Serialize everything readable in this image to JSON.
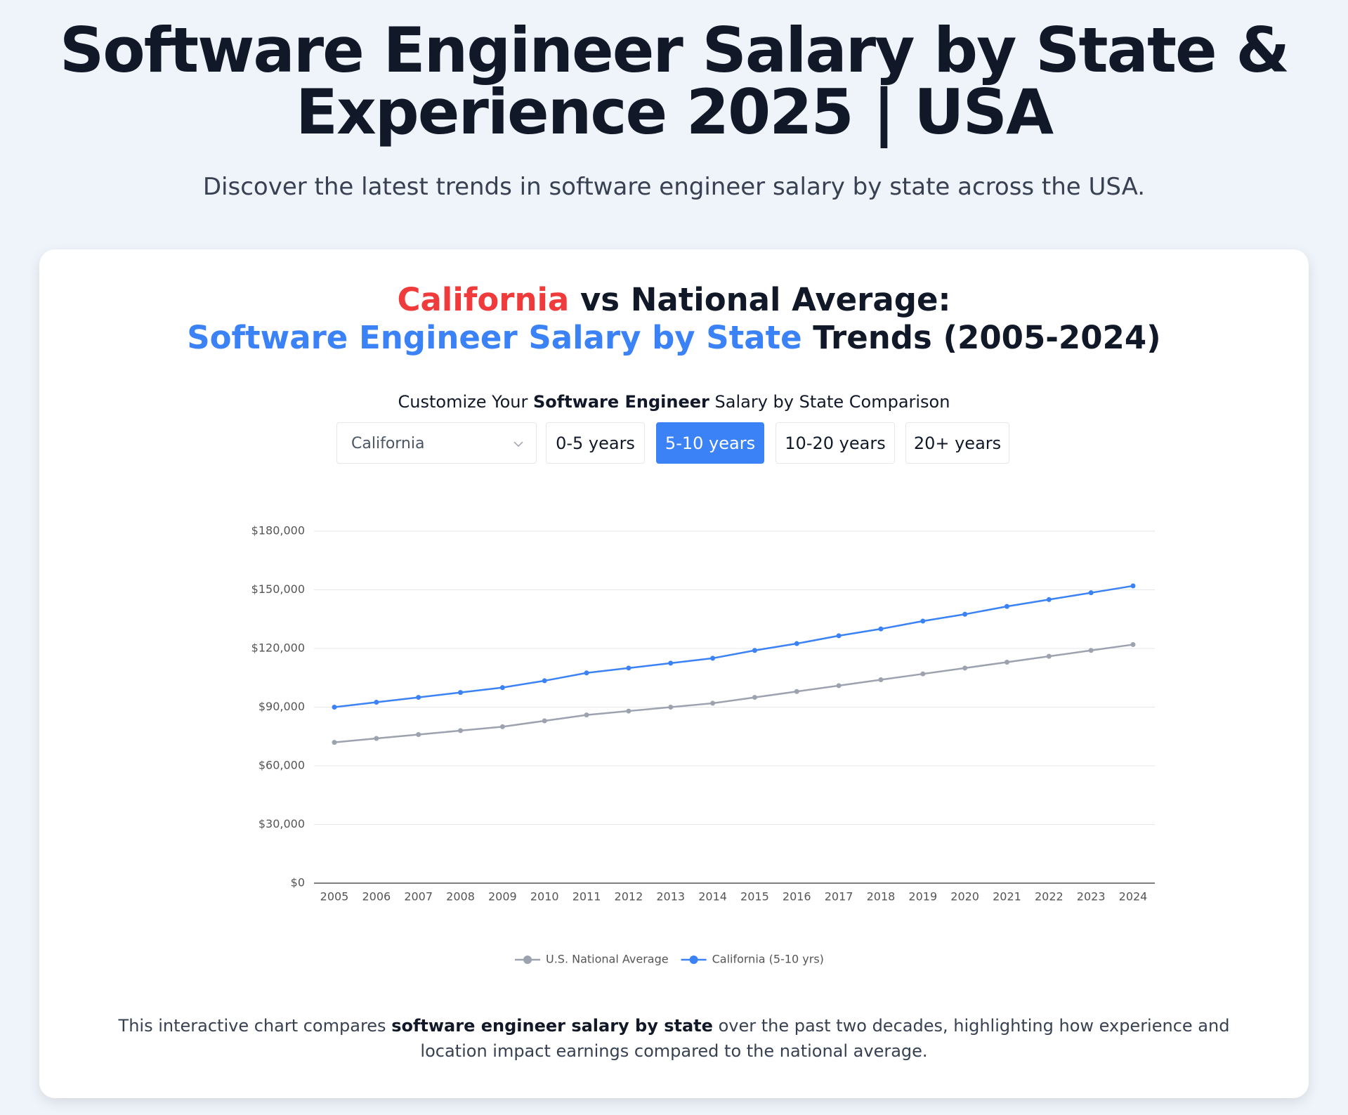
{
  "header": {
    "title": "Software Engineer Salary by State & Experience 2025 | USA",
    "subtitle": "Discover the latest trends in software engineer salary by state across the USA."
  },
  "card": {
    "heading": {
      "line1": [
        "California",
        " vs National Average:"
      ],
      "line2": [
        "Software Engineer Salary by State",
        " Trends (2005-2024)"
      ]
    },
    "controls_label": [
      "Customize Your ",
      "Software Engineer",
      " Salary by State Comparison"
    ],
    "select": "California",
    "buttons": [
      "0-5 years",
      "5-10 years",
      "10-20 years",
      "20+ years"
    ],
    "footer": [
      "This interactive chart compares ",
      "software engineer salary by state",
      " over the past two decades, highlighting how experience and location impact earnings compared to the national average."
    ]
  },
  "chart_data": {
    "type": "line",
    "categories": [
      "2005",
      "2006",
      "2007",
      "2008",
      "2009",
      "2010",
      "2011",
      "2012",
      "2013",
      "2014",
      "2015",
      "2016",
      "2017",
      "2018",
      "2019",
      "2020",
      "2021",
      "2022",
      "2023",
      "2024"
    ],
    "series": [
      {
        "name": "U.S. National Average",
        "color": "#9ca3af",
        "values": [
          72000,
          74000,
          76000,
          78000,
          80000,
          83000,
          86000,
          88000,
          90000,
          92000,
          95000,
          98000,
          101000,
          104000,
          107000,
          110000,
          113000,
          116000,
          119000,
          122000
        ]
      },
      {
        "name": "California (5-10 yrs)",
        "color": "#3b82f6",
        "values": [
          90000,
          92500,
          95000,
          97500,
          100000,
          103500,
          107500,
          110000,
          112500,
          115000,
          119000,
          122500,
          126500,
          130000,
          134000,
          137500,
          141500,
          145000,
          148500,
          152000
        ]
      }
    ],
    "ylim": [
      0,
      180000
    ],
    "yticks": [
      {
        "value": 0,
        "label": "$0"
      },
      {
        "value": 30000,
        "label": "$30,000"
      },
      {
        "value": 60000,
        "label": "$60,000"
      },
      {
        "value": 90000,
        "label": "$90,000"
      },
      {
        "value": 120000,
        "label": "$120,000"
      },
      {
        "value": 150000,
        "label": "$150,000"
      },
      {
        "value": 180000,
        "label": "$180,000"
      }
    ],
    "grid": true
  }
}
